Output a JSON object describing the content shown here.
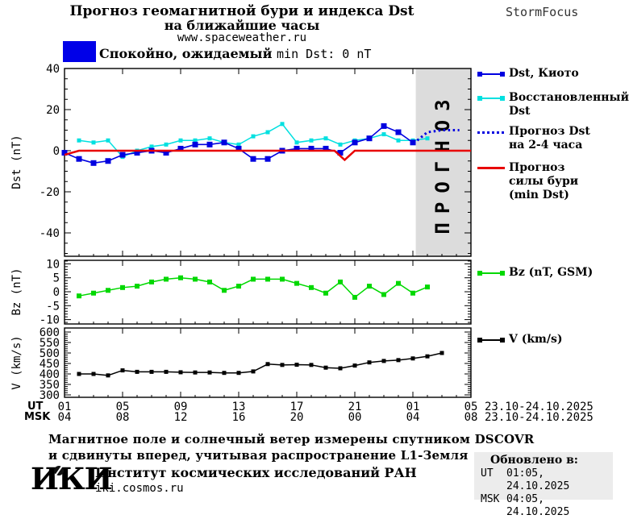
{
  "header": {
    "title1": "Прогноз геомагнитной бури и индекса Dst",
    "title2": "на ближайшие часы",
    "site": "www.spaceweather.ru",
    "brand": "StormFocus"
  },
  "status": {
    "cyr": "Спокойно, ожидаемый",
    "lat": "min Dst: 0 nT",
    "box_color": "#0000e8"
  },
  "axis_titles": {
    "dst": "Dst (nT)",
    "bz": "Bz (nT)",
    "v": "V (km/s)"
  },
  "xaxis": {
    "ut_label": "UT",
    "msk_label": "MSK",
    "date_ut": "23.10-24.10.2025",
    "date_msk": "23.10-24.10.2025"
  },
  "legend": {
    "kyoto": "Dst, Киото",
    "restored_l1": "Восстановленный",
    "restored_l2": "Dst",
    "forecast_l1": "Прогноз Dst",
    "forecast_l2": "на 2-4 часа",
    "storm_l1": "Прогноз",
    "storm_l2": "силы бури",
    "storm_l3": "(min Dst)",
    "bz": "Bz (nT, GSM)",
    "v": "V (km/s)"
  },
  "footer": {
    "line1": "Магнитное поле и солнечный ветер измерены спутником DSCOVR",
    "line2": "и сдвинуты вперед, учитывая распространение L1-Земля",
    "logo": "ИКИ",
    "institute": "Институт космических исследований РАН",
    "site": "iki.cosmos.ru"
  },
  "updated": {
    "heading": "Обновлено в:",
    "ut_label": "UT",
    "ut_value": "01:05, 24.10.2025",
    "msk_label": "MSK",
    "msk_value": "04:05, 24.10.2025"
  },
  "colors": {
    "kyoto": "#0000e0",
    "restored": "#00e0e0",
    "forecast_dst": "#0000e0",
    "storm": "#e80000",
    "bz": "#00d800",
    "v": "#000000",
    "band": "#dcdcdc",
    "band_text": "#c3c3c3"
  },
  "chart_data": [
    {
      "type": "line",
      "title": "Прогноз геомагнитной бури и индекса Dst",
      "ylabel": "Dst (nT)",
      "ylim": [
        -51,
        41
      ],
      "yticks": [
        40,
        20,
        0,
        -20,
        -40
      ],
      "ytick_minor_step": 5,
      "x_axis_note": "hours, hourly points; x=0 is 01:00 UT 23.10.2025, x=28 is 05:00 UT 24.10.2025",
      "xticks": {
        "ut": [
          "01",
          "05",
          "09",
          "13",
          "17",
          "21",
          "01",
          "05"
        ],
        "msk": [
          "04",
          "08",
          "12",
          "16",
          "20",
          "00",
          "04",
          "08"
        ]
      },
      "forecast_band": {
        "from": 24.2,
        "to": 28,
        "label": "ПРОГНОЗ"
      },
      "series": [
        {
          "name": "Восстановленный Dst",
          "color": "#00e0e0",
          "marker": 5,
          "width": 1.5,
          "x": [
            1,
            2,
            3,
            4,
            5,
            6,
            7,
            8,
            9,
            10,
            11,
            12,
            13,
            14,
            15,
            16,
            17,
            18,
            19,
            20,
            21,
            22,
            23,
            24,
            25
          ],
          "values": [
            5,
            4,
            5,
            -3,
            0,
            2,
            3,
            5,
            5,
            6,
            4,
            3,
            7,
            9,
            13,
            4,
            5,
            6,
            3,
            5,
            6,
            8,
            5,
            5,
            6
          ]
        },
        {
          "name": "Dst, Киото",
          "color": "#0000e0",
          "marker": 7,
          "width": 1.6,
          "x": [
            0,
            1,
            2,
            3,
            4,
            5,
            6,
            7,
            8,
            9,
            10,
            11,
            12,
            13,
            14,
            15,
            16,
            17,
            18,
            19,
            20,
            21,
            22,
            23,
            24
          ],
          "values": [
            -1,
            -4,
            -6,
            -5,
            -2,
            -1,
            0,
            -1,
            1,
            3,
            3,
            4,
            1,
            -4,
            -4,
            0,
            1,
            1,
            1,
            -1,
            4,
            6,
            12,
            9,
            4
          ]
        },
        {
          "name": "Прогноз силы бури (min Dst)",
          "color": "#e80000",
          "marker": 0,
          "width": 2.5,
          "x": [
            0,
            1,
            18.6,
            19.3,
            20,
            28
          ],
          "values": [
            -2,
            0,
            0,
            -4.5,
            0,
            0
          ]
        },
        {
          "name": "Прогноз Dst на 2-4 часа",
          "color": "#0000e0",
          "marker": 0,
          "width": 3,
          "style": "dotted",
          "x": [
            24.3,
            25,
            26,
            27.2
          ],
          "values": [
            5,
            9,
            10,
            10
          ]
        }
      ]
    },
    {
      "type": "line",
      "ylabel": "Bz (nT)",
      "ylim": [
        -11.5,
        11.3
      ],
      "yticks": [
        10,
        5,
        0,
        -5,
        -10
      ],
      "ytick_minor_step": 1,
      "series": [
        {
          "name": "Bz (nT, GSM)",
          "color": "#00d800",
          "marker": 6,
          "width": 1.5,
          "x": [
            1,
            2,
            3,
            4,
            5,
            6,
            7,
            8,
            9,
            10,
            11,
            12,
            13,
            14,
            15,
            16,
            17,
            18,
            19,
            20,
            21,
            22,
            23,
            24,
            25
          ],
          "values": [
            -1.5,
            -0.5,
            0.5,
            1.5,
            2,
            3.5,
            4.5,
            5,
            4.5,
            3.5,
            0.5,
            2,
            4.5,
            4.5,
            4.5,
            3,
            1.5,
            -0.5,
            3.5,
            -2,
            2,
            -1,
            3,
            -0.5,
            1.7
          ]
        }
      ]
    },
    {
      "type": "line",
      "ylabel": "V (km/s)",
      "ylim": [
        300,
        600
      ],
      "yticks": [
        600,
        550,
        500,
        450,
        400,
        350,
        300
      ],
      "ytick_minor_step": 10,
      "series": [
        {
          "name": "V (km/s)",
          "color": "#000000",
          "marker": 5,
          "width": 1.5,
          "x": [
            1,
            2,
            3,
            4,
            5,
            6,
            7,
            8,
            9,
            10,
            11,
            12,
            13,
            14,
            15,
            16,
            17,
            18,
            19,
            20,
            21,
            22,
            23,
            24,
            25,
            26
          ],
          "values": [
            400,
            400,
            393,
            417,
            410,
            410,
            410,
            408,
            407,
            407,
            405,
            405,
            412,
            447,
            443,
            444,
            443,
            430,
            427,
            440,
            455,
            462,
            466,
            474,
            484,
            500
          ]
        }
      ]
    }
  ]
}
